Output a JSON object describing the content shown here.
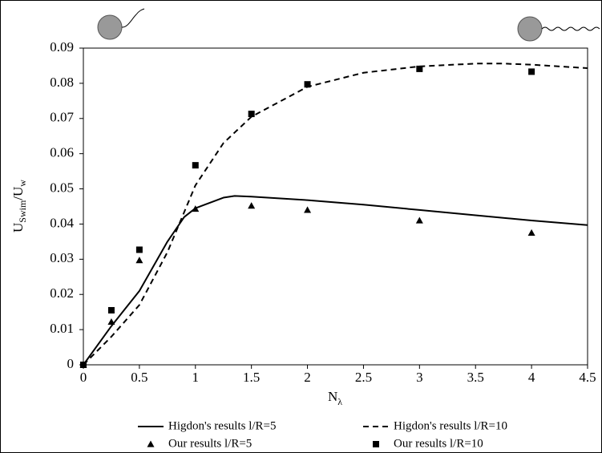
{
  "chart_data": {
    "type": "line",
    "x_label": [
      "N",
      "λ"
    ],
    "y_label": [
      "U",
      "Swim",
      "/U",
      "w"
    ],
    "xlim": [
      0,
      4.5
    ],
    "xticks": [
      0,
      0.5,
      1,
      1.5,
      2,
      2.5,
      3,
      3.5,
      4,
      4.5
    ],
    "ylim": [
      0,
      0.09
    ],
    "yticks": [
      0,
      0.01,
      0.02,
      0.03,
      0.04,
      0.05,
      0.06,
      0.07,
      0.08,
      0.09
    ],
    "grid": false,
    "legend": "bottom",
    "series": [
      {
        "name": "Higdon's results l/R=5",
        "color": "#000000",
        "style": "solid",
        "x": [
          0,
          0.25,
          0.5,
          0.75,
          0.9,
          1,
          1.25,
          1.35,
          1.5,
          2,
          2.5,
          3,
          3.5,
          4,
          4.5
        ],
        "values": [
          0,
          0.011,
          0.021,
          0.035,
          0.042,
          0.0445,
          0.0475,
          0.048,
          0.0478,
          0.0468,
          0.0455,
          0.044,
          0.0425,
          0.041,
          0.0397
        ]
      },
      {
        "name": "Higdon's results l/R=10",
        "color": "#000000",
        "style": "dashed",
        "x": [
          0,
          0.25,
          0.5,
          0.75,
          1,
          1.25,
          1.5,
          2,
          2.5,
          3,
          3.5,
          3.75,
          4,
          4.5
        ],
        "values": [
          0,
          0.008,
          0.017,
          0.032,
          0.051,
          0.063,
          0.0705,
          0.079,
          0.083,
          0.0848,
          0.0856,
          0.0856,
          0.0853,
          0.0843
        ]
      },
      {
        "name": "Our results l/R=5",
        "color": "#000000",
        "style": "triangle",
        "x": [
          0,
          0.25,
          0.5,
          1,
          1.5,
          2,
          3,
          4
        ],
        "values": [
          0,
          0.0122,
          0.0297,
          0.0443,
          0.0452,
          0.044,
          0.041,
          0.0375
        ]
      },
      {
        "name": "Our results l/R=10",
        "color": "#000000",
        "style": "square",
        "x": [
          0,
          0.25,
          0.5,
          1,
          1.5,
          2,
          3,
          4
        ],
        "values": [
          0,
          0.0155,
          0.0327,
          0.0567,
          0.0713,
          0.0797,
          0.0841,
          0.0833
        ]
      }
    ]
  }
}
